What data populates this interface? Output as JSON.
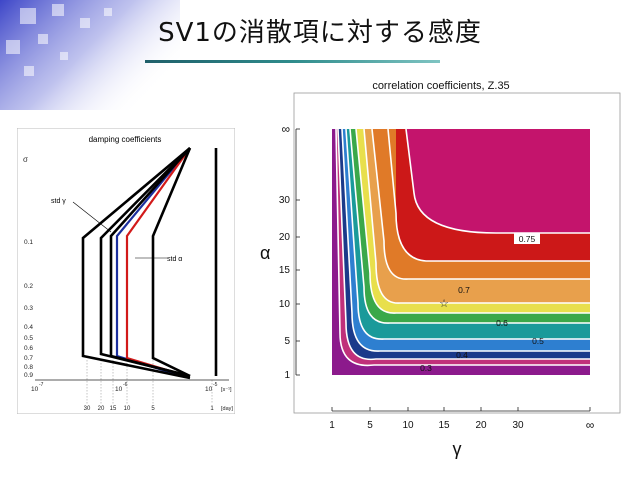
{
  "slide": {
    "title": "SV1の消散項に対する感度"
  },
  "left_figure": {
    "title": "damping coefficients",
    "y_axis_symbol": "σ",
    "sigma_ticks": [
      "0.1",
      "0.2",
      "0.3",
      "0.4",
      "0.5",
      "0.6",
      "0.7",
      "0.8",
      "0.9"
    ],
    "x_ticks_top": [
      "10",
      "10",
      "10"
    ],
    "x_ticks_top_exp": [
      "-7",
      "-6",
      "-5"
    ],
    "x_unit_top": "[s⁻¹]",
    "x_ticks_bottom": [
      "30",
      "20",
      "15",
      "10",
      "5",
      "1"
    ],
    "x_unit_bottom": "[day]",
    "label_std_gamma": "std γ",
    "label_std_alpha": "std α",
    "line_colors": {
      "black": "#000000",
      "blue": "#1c2f9e",
      "red": "#d21a1a"
    }
  },
  "right_figure": {
    "title": "correlation coefficients, Z.35",
    "x_label": "γ",
    "y_label": "α",
    "x_ticks": [
      "1",
      "5",
      "10",
      "15",
      "20",
      "30",
      "∞"
    ],
    "y_ticks": [
      "1",
      "5",
      "10",
      "15",
      "20",
      "30",
      "∞"
    ],
    "contour_labels": [
      "0.75",
      "0.7",
      "0.6",
      "0.5",
      "0.4",
      "0.3"
    ],
    "marker": "☆",
    "colors": {
      "magenta": "#c4146c",
      "red": "#cc1818",
      "orange": "#e07a28",
      "light_orange": "#e8a04c",
      "yellow": "#e8df4c",
      "green": "#3aa84a",
      "teal": "#1a9a9a",
      "blue": "#2e7fd0",
      "navy": "#1b3a8a",
      "purple": "#5a2a8c",
      "violet": "#8c1a8c"
    }
  }
}
